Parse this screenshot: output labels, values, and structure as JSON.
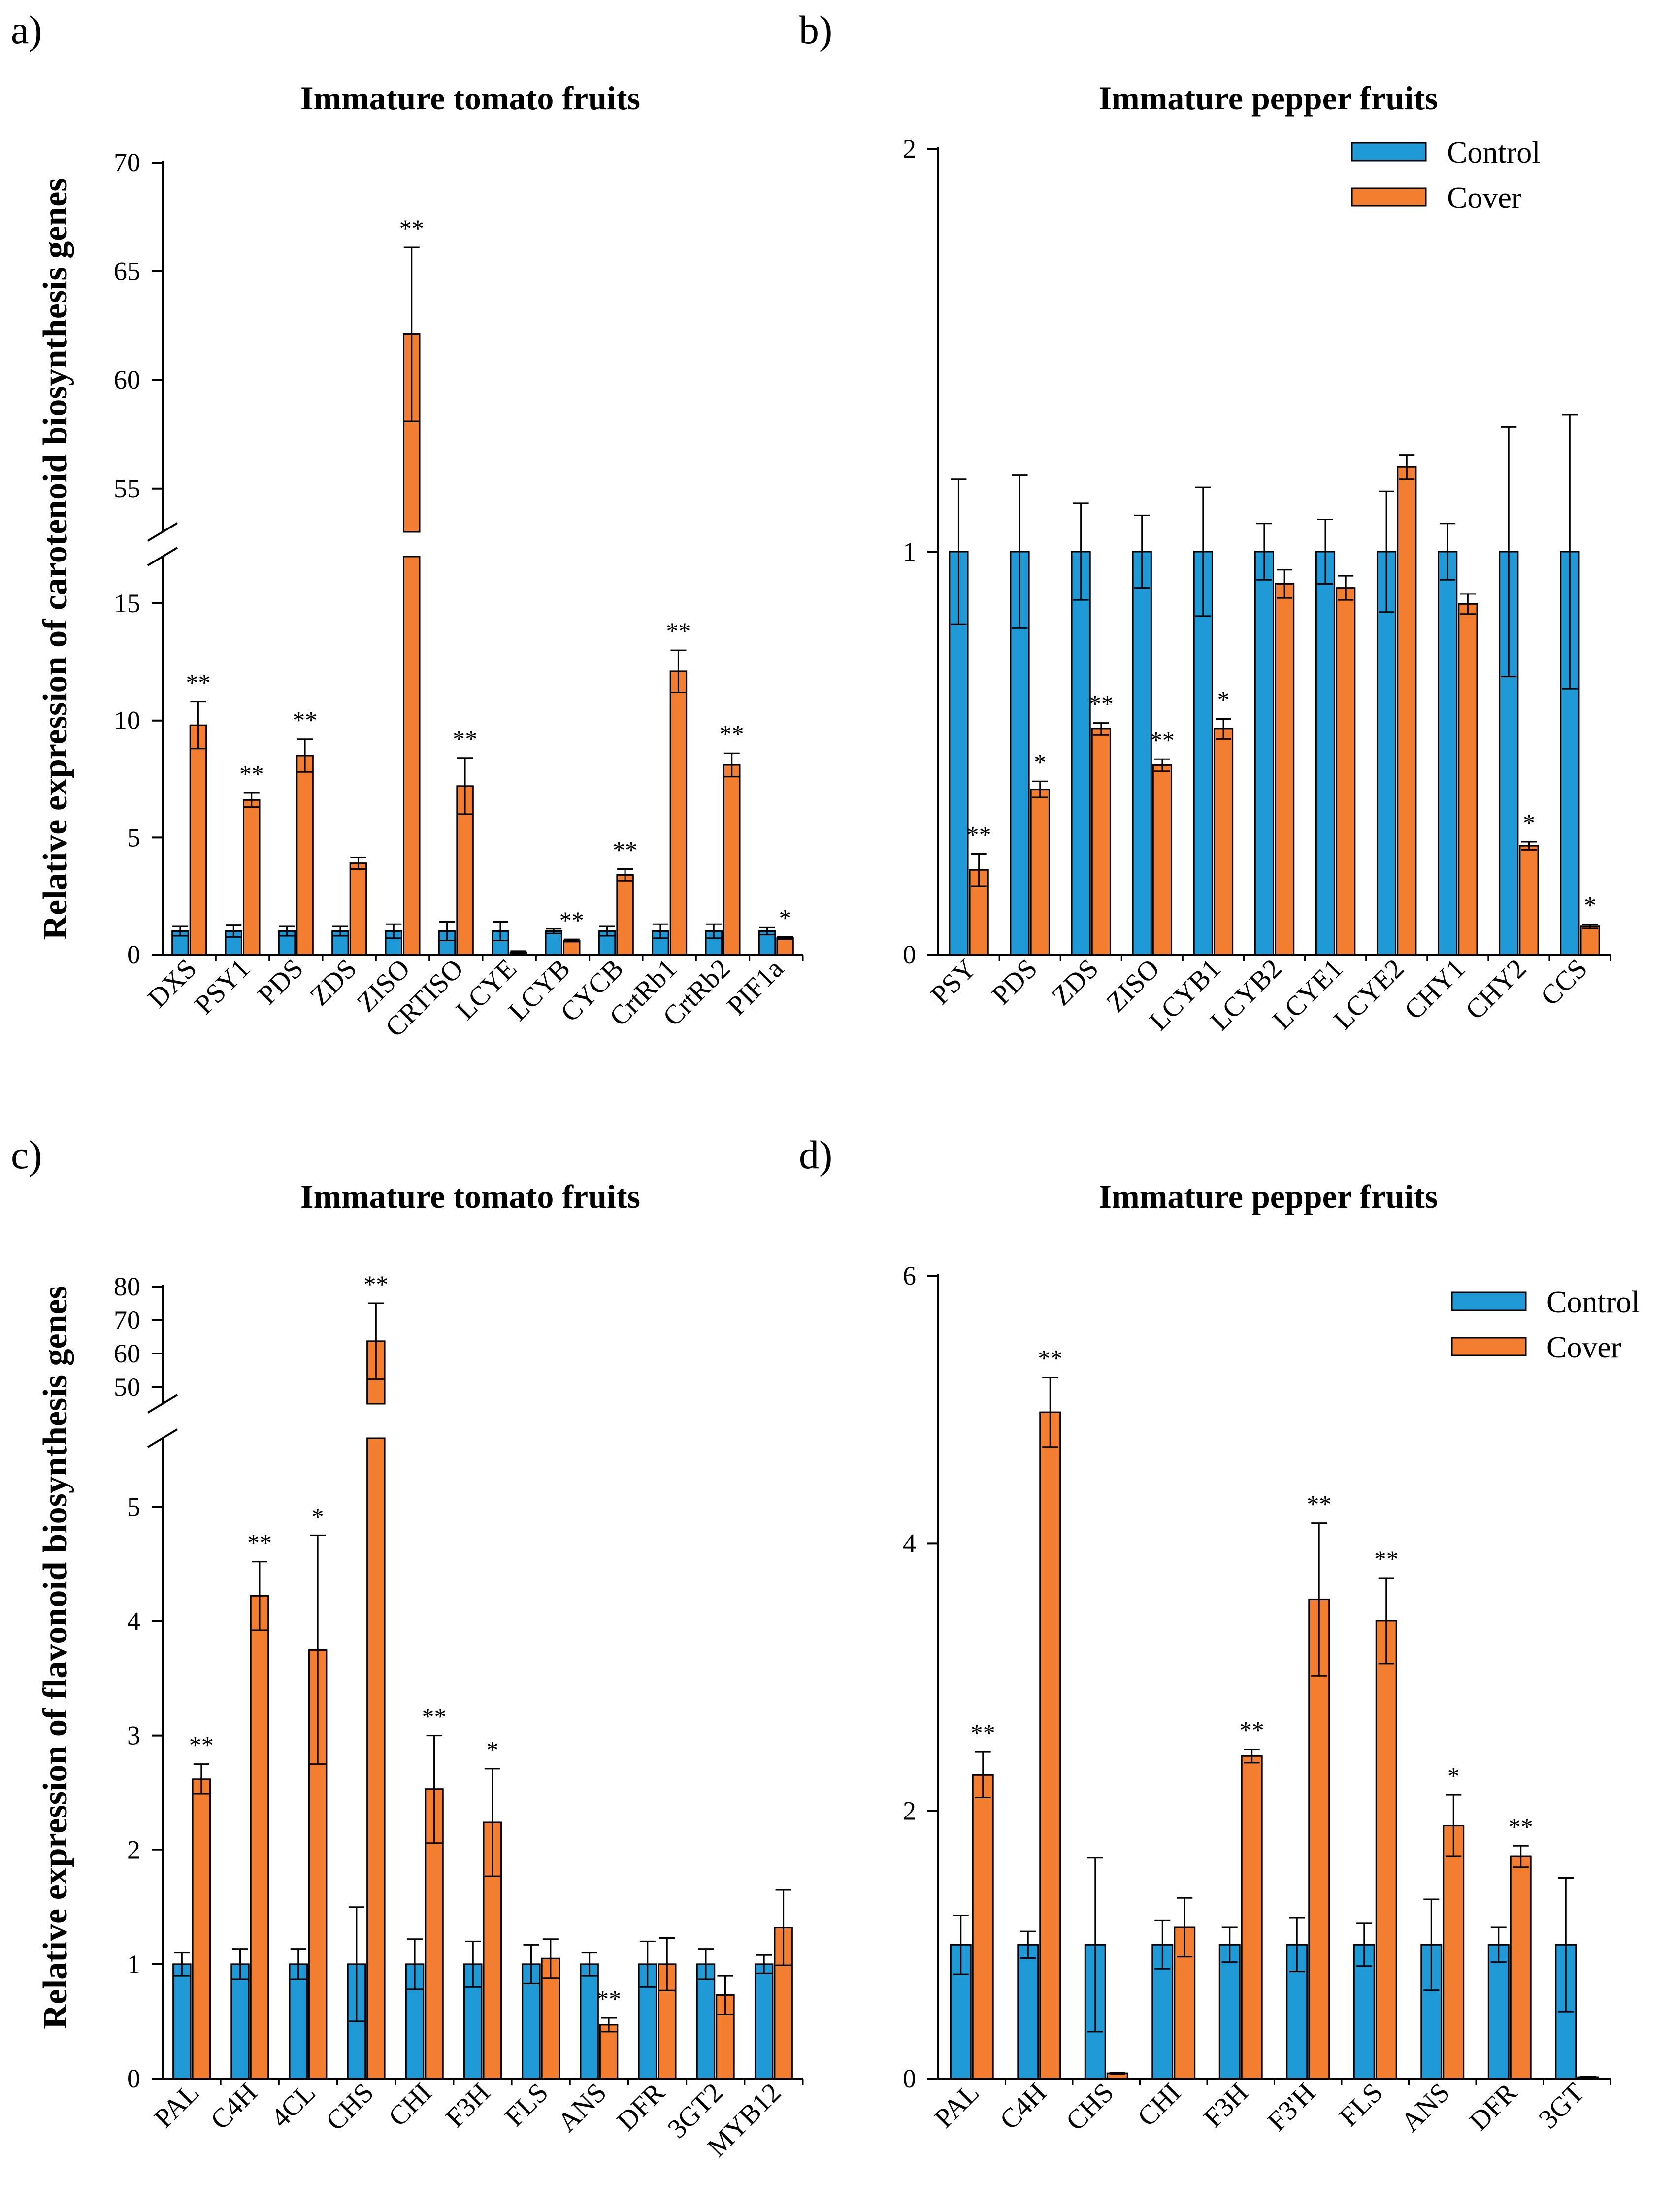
{
  "figure": {
    "panel_letters": [
      "a)",
      "b)",
      "c)",
      "d)"
    ],
    "y_label_carotenoid": "Relative expression of carotenoid biosynthesis genes",
    "y_label_flavonoid": "Relative expression of flavonoid biosynthesis genes",
    "legend": {
      "control": "Control",
      "cover": "Cover"
    },
    "colors": {
      "control": "#1f9ad6",
      "cover": "#f47e2f"
    }
  },
  "chart_data": [
    {
      "panel": "a)",
      "type": "bar",
      "title": "Immature tomato fruits",
      "ylabel": "Relative expression of carotenoid biosynthesis genes",
      "axis_break": {
        "lower": [
          0,
          17
        ],
        "upper": [
          53,
          70
        ]
      },
      "lower_ticks": [
        0,
        5,
        10,
        15
      ],
      "upper_ticks": [
        55,
        60,
        65,
        70
      ],
      "categories": [
        "DXS",
        "PSY1",
        "PDS",
        "ZDS",
        "ZISO",
        "CRTISO",
        "LCYE",
        "LCYB",
        "CYCB",
        "CrtRb1",
        "CrtRb2",
        "PIF1a"
      ],
      "series": [
        {
          "name": "Control",
          "values": [
            1,
            1,
            1,
            1,
            1,
            1,
            1,
            1,
            1,
            1,
            1,
            1
          ],
          "errors": [
            0.2,
            0.25,
            0.2,
            0.2,
            0.3,
            0.4,
            0.4,
            0.1,
            0.2,
            0.3,
            0.3,
            0.15
          ]
        },
        {
          "name": "Cover",
          "values": [
            9.8,
            6.6,
            8.5,
            3.9,
            62.1,
            7.2,
            0.1,
            0.6,
            3.4,
            12.1,
            8.1,
            0.7
          ],
          "errors": [
            1.0,
            0.3,
            0.7,
            0.25,
            4.0,
            1.2,
            0.05,
            0.05,
            0.25,
            0.9,
            0.5,
            0.05
          ]
        }
      ],
      "significance": [
        "**",
        "**",
        "**",
        "",
        "**",
        "**",
        "",
        "**",
        "**",
        "**",
        "**",
        "*"
      ]
    },
    {
      "panel": "b)",
      "type": "bar",
      "title": "Immature pepper fruits",
      "ylabel": "",
      "ylim": [
        0,
        2
      ],
      "ticks": [
        0,
        1,
        2
      ],
      "legend": "top-right",
      "categories": [
        "PSY",
        "PDS",
        "ZDS",
        "ZISO",
        "LCYB1",
        "LCYB2",
        "LCYE1",
        "LCYE2",
        "CHY1",
        "CHY2",
        "CCS"
      ],
      "series": [
        {
          "name": "Control",
          "values": [
            1,
            1,
            1,
            1,
            1,
            1,
            1,
            1,
            1,
            1,
            1
          ],
          "errors": [
            0.18,
            0.19,
            0.12,
            0.09,
            0.16,
            0.07,
            0.08,
            0.15,
            0.07,
            0.31,
            0.34
          ]
        },
        {
          "name": "Cover",
          "values": [
            0.21,
            0.41,
            0.56,
            0.47,
            0.56,
            0.92,
            0.91,
            1.21,
            0.87,
            0.27,
            0.07
          ],
          "errors": [
            0.04,
            0.02,
            0.015,
            0.015,
            0.025,
            0.035,
            0.03,
            0.03,
            0.025,
            0.01,
            0.005
          ]
        }
      ],
      "significance": [
        "**",
        "*",
        "**",
        "**",
        "*",
        "",
        "",
        "",
        "",
        "*",
        "*"
      ]
    },
    {
      "panel": "c)",
      "type": "bar",
      "title": "Immature tomato fruits",
      "ylabel": "Relative expression of flavonoid biosynthesis genes",
      "axis_break": {
        "lower": [
          0,
          5.6
        ],
        "upper": [
          45,
          80
        ]
      },
      "lower_ticks": [
        0,
        1,
        2,
        3,
        4,
        5
      ],
      "upper_ticks": [
        50,
        60,
        70,
        80
      ],
      "categories": [
        "PAL",
        "C4H",
        "4CL",
        "CHS",
        "CHI",
        "F3H",
        "FLS",
        "ANS",
        "DFR",
        "3GT2",
        "MYB12"
      ],
      "series": [
        {
          "name": "Control",
          "values": [
            1,
            1,
            1,
            1,
            1,
            1,
            1,
            1,
            1,
            1,
            1
          ],
          "errors": [
            0.1,
            0.13,
            0.13,
            0.5,
            0.22,
            0.2,
            0.17,
            0.1,
            0.2,
            0.13,
            0.08
          ]
        },
        {
          "name": "Cover",
          "values": [
            2.62,
            4.22,
            3.75,
            63.7,
            2.53,
            2.24,
            1.05,
            0.47,
            1.0,
            0.73,
            1.32
          ],
          "errors": [
            0.13,
            0.3,
            1.0,
            11.3,
            0.47,
            0.47,
            0.17,
            0.06,
            0.23,
            0.17,
            0.33
          ]
        }
      ],
      "significance": [
        "**",
        "**",
        "*",
        "**",
        "**",
        "*",
        "",
        "**",
        "",
        "",
        ""
      ]
    },
    {
      "panel": "d)",
      "type": "bar",
      "title": "Immature pepper fruits",
      "ylabel": "",
      "ylim": [
        0,
        6
      ],
      "ticks": [
        0,
        2,
        4,
        6
      ],
      "legend": "top-right",
      "categories": [
        "PAL",
        "C4H",
        "CHS",
        "CHI",
        "F3H",
        "F3'H",
        "FLS",
        "ANS",
        "DFR",
        "3GT"
      ],
      "series": [
        {
          "name": "Control",
          "values": [
            1,
            1,
            1,
            1,
            1,
            1,
            1,
            1,
            1,
            1
          ],
          "errors": [
            0.22,
            0.1,
            0.65,
            0.18,
            0.13,
            0.2,
            0.16,
            0.34,
            0.13,
            0.5
          ]
        },
        {
          "name": "Cover",
          "values": [
            2.27,
            4.98,
            0.04,
            1.13,
            2.41,
            3.58,
            3.42,
            1.89,
            1.66,
            0.01
          ],
          "errors": [
            0.17,
            0.26,
            0.005,
            0.22,
            0.05,
            0.57,
            0.32,
            0.23,
            0.08,
            0.003
          ]
        }
      ],
      "significance": [
        "**",
        "**",
        "",
        "",
        "**",
        "**",
        "**",
        "*",
        "**",
        ""
      ]
    }
  ]
}
